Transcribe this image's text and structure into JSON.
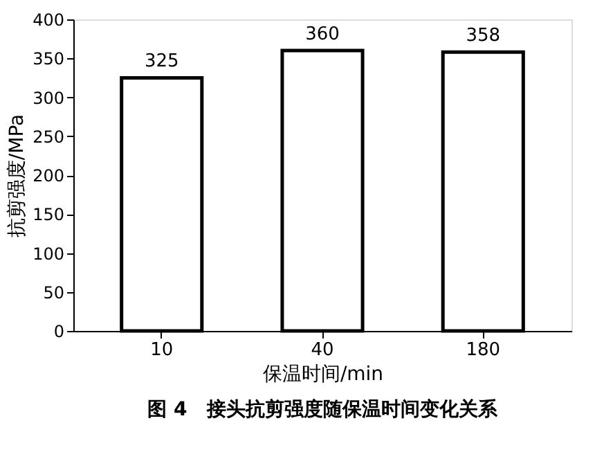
{
  "chart_data": {
    "type": "bar",
    "title": "图 4　接头抗剪强度随保温时间变化关系",
    "xlabel": "保温时间/min",
    "ylabel": "抗剪强度/MPa",
    "categories": [
      "10",
      "40",
      "180"
    ],
    "values": [
      325,
      360,
      358
    ],
    "color": "#ffffff",
    "ylim": [
      0,
      400
    ],
    "yticks": [
      0,
      50,
      100,
      150,
      200,
      250,
      300,
      350,
      400
    ],
    "grid": false,
    "data_labels": true
  }
}
